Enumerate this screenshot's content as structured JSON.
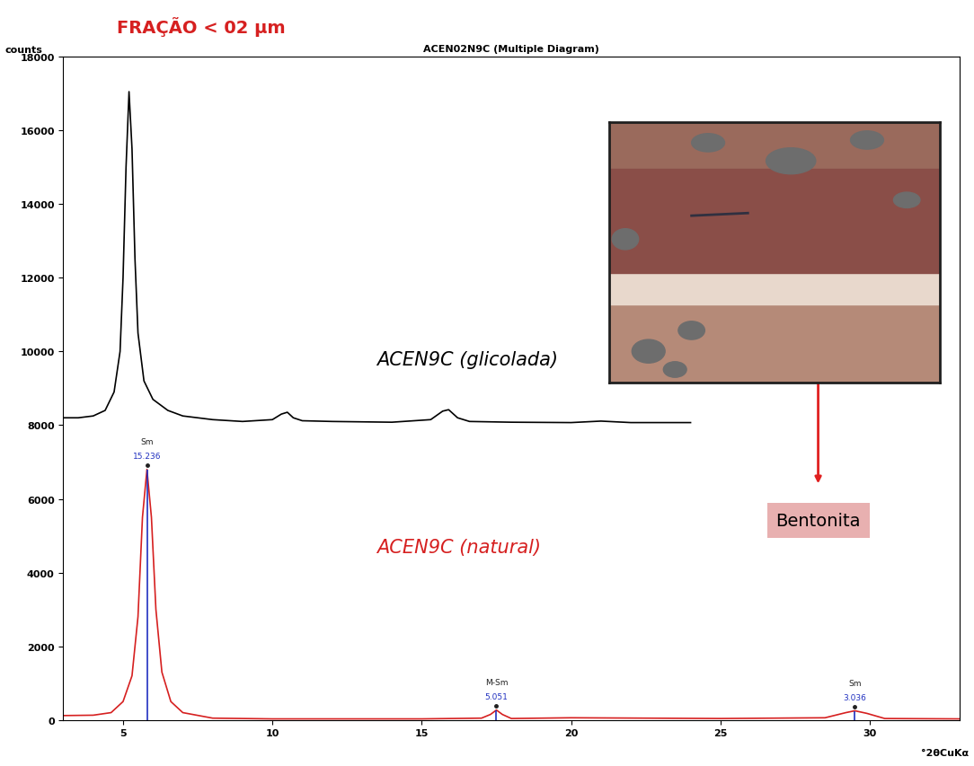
{
  "chart_data": {
    "type": "line",
    "title": "ACEN02N9C (Multiple Diagram)",
    "heading": "FRAÇÃO < 02 µm",
    "y_label": "counts",
    "x_label": "°2θCuKα",
    "xlim": [
      3,
      33
    ],
    "xticks": [
      5,
      10,
      15,
      20,
      25,
      30
    ],
    "ylim": [
      0,
      18000
    ],
    "yticks": [
      0,
      2000,
      4000,
      6000,
      8000,
      10000,
      12000,
      14000,
      16000,
      18000
    ],
    "series": [
      {
        "name": "ACEN9C (glicolada)",
        "color": "#000000",
        "x": [
          3,
          3.5,
          4,
          4.4,
          4.7,
          4.9,
          5.0,
          5.1,
          5.2,
          5.3,
          5.4,
          5.5,
          5.7,
          6,
          6.5,
          7,
          8,
          9,
          10,
          10.3,
          10.5,
          10.7,
          11,
          12,
          14,
          15.3,
          15.7,
          15.9,
          16.2,
          16.6,
          18,
          20,
          21,
          22,
          24
        ],
        "values": [
          8200,
          8200,
          8250,
          8400,
          8900,
          10000,
          12000,
          15000,
          17050,
          15500,
          12500,
          10500,
          9200,
          8700,
          8400,
          8250,
          8150,
          8100,
          8150,
          8300,
          8350,
          8200,
          8120,
          8100,
          8080,
          8150,
          8380,
          8420,
          8200,
          8100,
          8080,
          8070,
          8110,
          8070,
          8070
        ]
      },
      {
        "name": "ACEN9C (natural)",
        "color": "#d62020",
        "x": [
          3,
          4,
          4.6,
          5.0,
          5.3,
          5.5,
          5.65,
          5.8,
          5.95,
          6.1,
          6.3,
          6.6,
          7,
          8,
          10,
          15,
          17,
          17.3,
          17.5,
          17.7,
          18,
          20,
          25,
          28.5,
          29.2,
          29.5,
          29.9,
          30.5,
          33
        ],
        "values": [
          120,
          130,
          200,
          500,
          1200,
          2800,
          5500,
          6800,
          5500,
          3000,
          1300,
          500,
          200,
          50,
          30,
          30,
          50,
          150,
          270,
          150,
          40,
          60,
          40,
          60,
          200,
          250,
          180,
          40,
          30
        ]
      }
    ],
    "peaks": [
      {
        "x": 5.8,
        "y": 6800,
        "label": "Sm",
        "d": 15.236
      },
      {
        "x": 17.5,
        "y": 270,
        "label": "M-Sm",
        "d": 5.051
      },
      {
        "x": 29.5,
        "y": 250,
        "label": "Sm",
        "d": 3.036
      }
    ],
    "annotations": [
      "Bentonita"
    ]
  }
}
